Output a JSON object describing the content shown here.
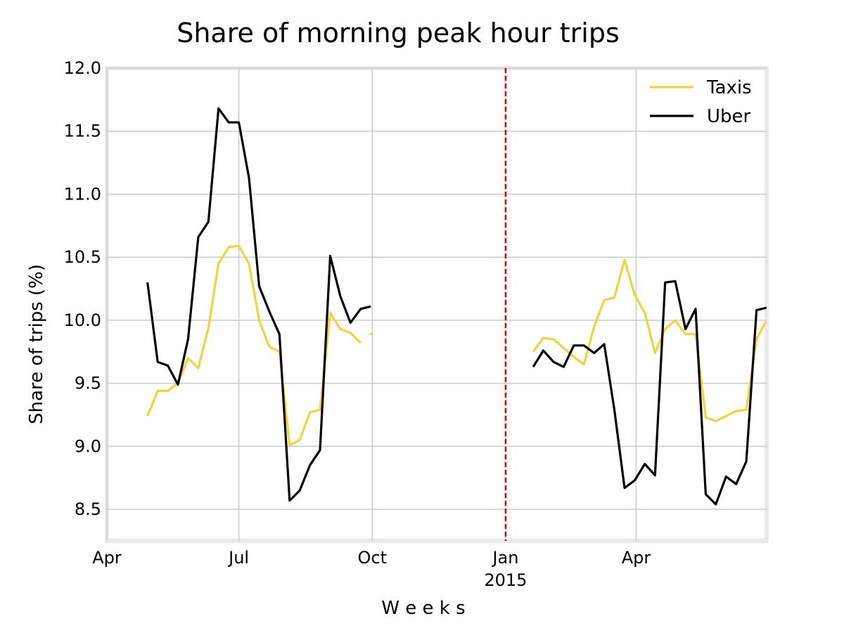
{
  "chart_data": {
    "type": "line",
    "title": "Share of morning peak hour trips",
    "xlabel": "W e e k s",
    "ylabel": "Share of trips (%)",
    "ylim": [
      8.25,
      12.0
    ],
    "xlim": [
      "2014-04-01",
      "2015-06-30"
    ],
    "y_ticks": [
      8.5,
      9.0,
      9.5,
      10.0,
      10.5,
      11.0,
      11.5,
      12.0
    ],
    "y_tick_labels": [
      "8.5",
      "9.0",
      "9.5",
      "10.0",
      "10.5",
      "11.0",
      "11.5",
      "12.0"
    ],
    "x_ticks": [
      {
        "date": "2014-04-01",
        "label": "Apr",
        "sublabel": ""
      },
      {
        "date": "2014-07-01",
        "label": "Jul",
        "sublabel": ""
      },
      {
        "date": "2014-10-01",
        "label": "Oct",
        "sublabel": ""
      },
      {
        "date": "2015-01-01",
        "label": "Jan",
        "sublabel": "2015"
      },
      {
        "date": "2015-04-01",
        "label": "Apr",
        "sublabel": ""
      }
    ],
    "grid": true,
    "legend_position": "top-right",
    "reference_line": {
      "date": "2015-01-01",
      "style": "dashed",
      "color": "#cc0000"
    },
    "series": [
      {
        "name": "Taxis",
        "color": "#f0d43a",
        "segments": [
          {
            "x": [
              "2014-04-29",
              "2014-05-06",
              "2014-05-13",
              "2014-05-20",
              "2014-05-27",
              "2014-06-03",
              "2014-06-10",
              "2014-06-17",
              "2014-06-24",
              "2014-07-01",
              "2014-07-08",
              "2014-07-15",
              "2014-07-22",
              "2014-07-29",
              "2014-08-05",
              "2014-08-12",
              "2014-08-19",
              "2014-08-26",
              "2014-09-02",
              "2014-09-09",
              "2014-09-16",
              "2014-09-23"
            ],
            "y": [
              9.24,
              9.44,
              9.44,
              9.5,
              9.7,
              9.62,
              9.94,
              10.45,
              10.58,
              10.59,
              10.45,
              10.0,
              9.79,
              9.75,
              9.01,
              9.05,
              9.27,
              9.29,
              10.06,
              9.93,
              9.9,
              9.82
            ]
          },
          {
            "x": [
              "2014-09-30"
            ],
            "y": [
              9.89
            ]
          },
          {
            "x": [
              "2015-01-20",
              "2015-01-27",
              "2015-02-03",
              "2015-02-10",
              "2015-02-17",
              "2015-02-24",
              "2015-03-03",
              "2015-03-10",
              "2015-03-17",
              "2015-03-24",
              "2015-03-31",
              "2015-04-07",
              "2015-04-14",
              "2015-04-21",
              "2015-04-28",
              "2015-05-05",
              "2015-05-12",
              "2015-05-19",
              "2015-05-26",
              "2015-06-02",
              "2015-06-09",
              "2015-06-16",
              "2015-06-23",
              "2015-06-30"
            ],
            "y": [
              9.75,
              9.86,
              9.85,
              9.78,
              9.71,
              9.65,
              9.95,
              10.16,
              10.18,
              10.48,
              10.2,
              10.06,
              9.74,
              9.93,
              10.0,
              9.89,
              9.89,
              9.23,
              9.2,
              9.24,
              9.28,
              9.29,
              9.85,
              10.0
            ]
          }
        ]
      },
      {
        "name": "Uber",
        "color": "#000000",
        "segments": [
          {
            "x": [
              "2014-04-29",
              "2014-05-06",
              "2014-05-13",
              "2014-05-20",
              "2014-05-27",
              "2014-06-03",
              "2014-06-10",
              "2014-06-17",
              "2014-06-24",
              "2014-07-01",
              "2014-07-08",
              "2014-07-15",
              "2014-07-22",
              "2014-07-29",
              "2014-08-05",
              "2014-08-12",
              "2014-08-19",
              "2014-08-26",
              "2014-09-02",
              "2014-09-09",
              "2014-09-16",
              "2014-09-23",
              "2014-09-30"
            ],
            "y": [
              10.3,
              9.67,
              9.64,
              9.49,
              9.85,
              10.66,
              10.78,
              11.68,
              11.57,
              11.57,
              11.13,
              10.27,
              10.07,
              9.89,
              8.57,
              8.65,
              8.85,
              8.97,
              10.51,
              10.19,
              9.98,
              10.09,
              10.11
            ]
          },
          {
            "x": [
              "2015-01-20",
              "2015-01-27",
              "2015-02-03",
              "2015-02-10",
              "2015-02-17",
              "2015-02-24",
              "2015-03-03",
              "2015-03-10",
              "2015-03-17",
              "2015-03-24",
              "2015-03-31",
              "2015-04-07",
              "2015-04-14",
              "2015-04-21",
              "2015-04-28",
              "2015-05-05",
              "2015-05-12",
              "2015-05-19",
              "2015-05-26",
              "2015-06-02",
              "2015-06-09",
              "2015-06-16",
              "2015-06-23",
              "2015-06-30"
            ],
            "y": [
              9.63,
              9.76,
              9.67,
              9.63,
              9.8,
              9.8,
              9.74,
              9.81,
              9.29,
              8.67,
              8.73,
              8.86,
              8.77,
              10.3,
              10.31,
              9.93,
              10.09,
              8.62,
              8.54,
              8.76,
              8.7,
              8.88,
              10.08,
              10.1
            ]
          }
        ]
      }
    ]
  }
}
